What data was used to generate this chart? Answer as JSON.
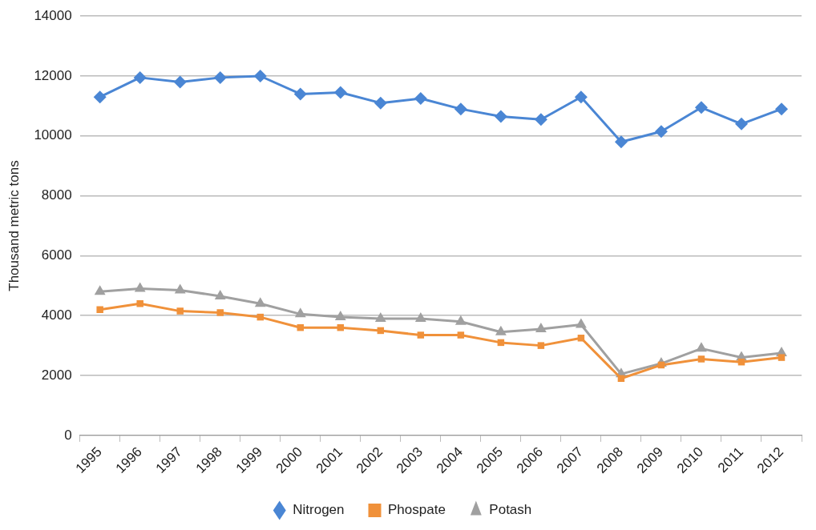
{
  "chart_data": {
    "type": "line",
    "ylabel": "Thousand metric tons",
    "categories": [
      "1995",
      "1996",
      "1997",
      "1998",
      "1999",
      "2000",
      "2001",
      "2002",
      "2003",
      "2004",
      "2005",
      "2006",
      "2007",
      "2008",
      "2009",
      "2010",
      "2011",
      "2012"
    ],
    "series": [
      {
        "name": "Nitrogen",
        "color": "#4a86d4",
        "marker": "diamond",
        "values": [
          11300,
          11950,
          11800,
          11950,
          12000,
          11400,
          11450,
          11100,
          11250,
          10900,
          10650,
          10550,
          11300,
          9800,
          10150,
          10950,
          10400,
          10900
        ]
      },
      {
        "name": "Phospate",
        "color": "#f0913a",
        "marker": "square",
        "values": [
          4200,
          4400,
          4150,
          4100,
          3950,
          3600,
          3600,
          3500,
          3350,
          3350,
          3100,
          3000,
          3250,
          1900,
          2350,
          2550,
          2450,
          2600
        ]
      },
      {
        "name": "Potash",
        "color": "#a0a0a0",
        "marker": "triangle",
        "values": [
          4800,
          4900,
          4850,
          4650,
          4400,
          4050,
          3950,
          3900,
          3900,
          3800,
          3450,
          3550,
          3700,
          2050,
          2400,
          2900,
          2600,
          2750
        ]
      }
    ],
    "ylim": [
      0,
      14000
    ],
    "yticks": [
      0,
      2000,
      4000,
      6000,
      8000,
      10000,
      12000,
      14000
    ],
    "grid": "y",
    "legend": "bottom",
    "line_style": "solid"
  }
}
